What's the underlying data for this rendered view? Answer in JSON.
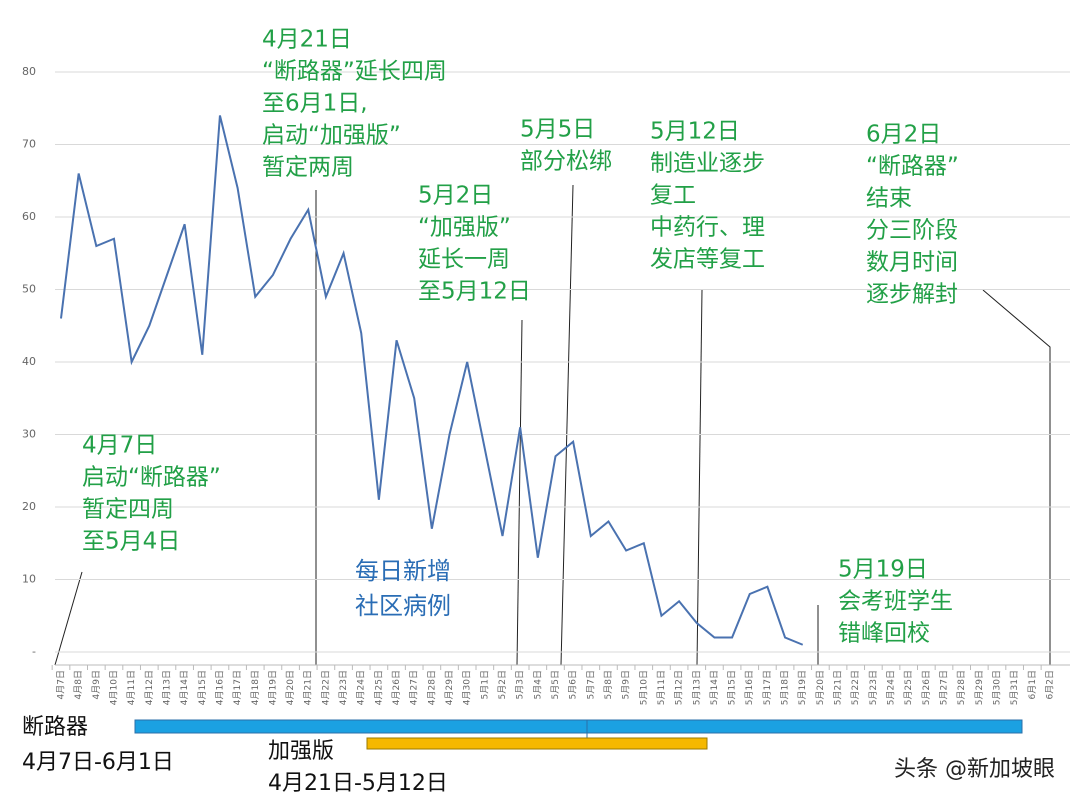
{
  "chart_data": {
    "type": "line",
    "categories": [
      "4月7日",
      "4月8日",
      "4月9日",
      "4月10日",
      "4月11日",
      "4月12日",
      "4月13日",
      "4月14日",
      "4月15日",
      "4月16日",
      "4月17日",
      "4月18日",
      "4月19日",
      "4月20日",
      "4月21日",
      "4月22日",
      "4月23日",
      "4月24日",
      "4月25日",
      "4月26日",
      "4月27日",
      "4月28日",
      "4月29日",
      "4月30日",
      "5月1日",
      "5月2日",
      "5月3日",
      "5月4日",
      "5月5日",
      "5月6日",
      "5月7日",
      "5月8日",
      "5月9日",
      "5月10日",
      "5月11日",
      "5月12日",
      "5月13日",
      "5月14日",
      "5月15日",
      "5月16日",
      "5月17日",
      "5月18日",
      "5月19日",
      "5月20日",
      "5月21日",
      "5月22日",
      "5月23日",
      "5月24日",
      "5月25日",
      "5月26日",
      "5月27日",
      "5月28日",
      "5月29日",
      "5月30日",
      "5月31日",
      "6月1日",
      "6月2日"
    ],
    "series": [
      {
        "name": "每日新增 社区病例",
        "name_lines": [
          "每日新增",
          "社区病例"
        ],
        "color": "#4a72b0",
        "values": [
          46,
          66,
          56,
          57,
          40,
          45,
          52,
          59,
          41,
          74,
          64,
          49,
          52,
          57,
          61,
          49,
          55,
          44,
          21,
          43,
          35,
          17,
          30,
          40,
          28,
          16,
          31,
          13,
          27,
          29,
          16,
          18,
          14,
          15,
          5,
          7,
          4,
          2,
          2,
          8,
          9,
          2,
          1,
          null,
          null,
          null,
          null,
          null,
          null,
          null,
          null,
          null,
          null,
          null,
          null,
          null,
          null
        ]
      }
    ],
    "ylim": [
      0,
      80
    ],
    "yticks": [
      {
        "value": 0,
        "label": "-"
      },
      10,
      20,
      30,
      40,
      50,
      60,
      70,
      80
    ],
    "grid": true,
    "annotations": [
      {
        "lines": [
          "4月21日",
          "“断路器”延长四周",
          "至6月1日,",
          "启动“加强版”",
          "暂定两周"
        ]
      },
      {
        "lines": [
          "5月2日",
          "“加强版”",
          "延长一周",
          "至5月12日"
        ]
      },
      {
        "lines": [
          "5月5日",
          "部分松绑"
        ]
      },
      {
        "lines": [
          "5月12日",
          "制造业逐步",
          "复工",
          "中药行、理",
          "发店等复工"
        ]
      },
      {
        "lines": [
          "6月2日",
          "“断路器”",
          "结束",
          "分三阶段",
          "数月时间",
          "逐步解封"
        ]
      },
      {
        "lines": [
          "4月7日",
          "启动“断路器”",
          "暂定四周",
          "至5月4日"
        ]
      },
      {
        "lines": [
          "5月19日",
          "会考班学生",
          "错峰回校"
        ]
      }
    ],
    "periods": [
      {
        "name": "断路器",
        "range": "4月7日-6月1日",
        "color": "#1ba1e2"
      },
      {
        "name": "加强版",
        "range": "4月21日-5月12日",
        "color": "#f5b800"
      }
    ],
    "footer": "头条 @新加坡眼"
  }
}
